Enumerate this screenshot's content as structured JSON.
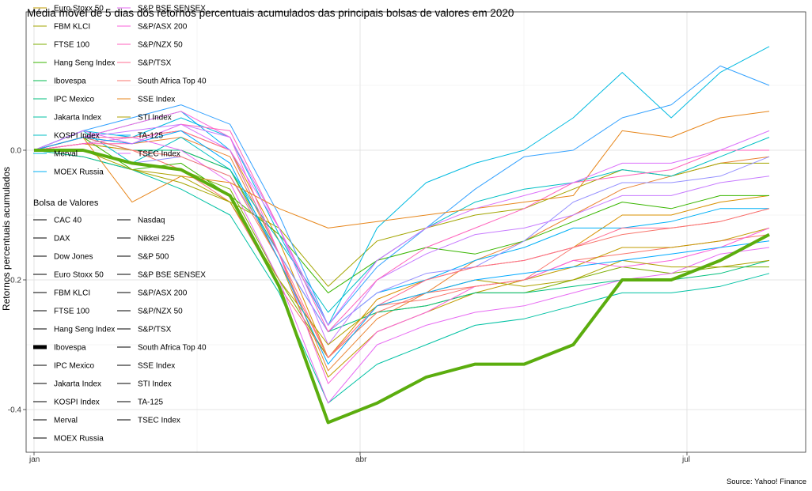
{
  "chart_data": {
    "type": "line",
    "title": "Média móvel de 5 dias dos retornos percentuais acumulados das principais bolsas de valores em 2020",
    "xlabel": "",
    "ylabel": "Retornos percentuais acumulados",
    "caption": "Source: Yahoo! Finance",
    "x_ticks": [
      "jan",
      "abr",
      "jul"
    ],
    "y_ticks": [
      0.0,
      -0.2,
      -0.4
    ],
    "y_tick_labels": [
      "0.0",
      "-0.2",
      "-0.4"
    ],
    "ylim": [
      -0.47,
      0.17
    ],
    "grid": true,
    "highlighted_series": "Ibovespa",
    "legend_title": "Bolsa de Valores",
    "series": [
      {
        "name": "CAC 40",
        "color": "#F8766D",
        "values": [
          0.0,
          0.01,
          0.0,
          -0.03,
          -0.08,
          -0.21,
          -0.32,
          -0.24,
          -0.23,
          -0.21,
          -0.2,
          -0.17,
          -0.16,
          -0.15,
          -0.14,
          -0.13
        ]
      },
      {
        "name": "DAX",
        "color": "#EA8331",
        "values": [
          0.0,
          0.02,
          0.01,
          0.02,
          -0.01,
          -0.16,
          -0.34,
          -0.26,
          -0.22,
          -0.17,
          -0.14,
          -0.1,
          -0.06,
          -0.04,
          -0.02,
          -0.01
        ]
      },
      {
        "name": "Dow Jones",
        "color": "#D89000",
        "values": [
          0.0,
          0.01,
          0.02,
          0.03,
          0.0,
          -0.14,
          -0.32,
          -0.23,
          -0.2,
          -0.18,
          -0.17,
          -0.15,
          -0.1,
          -0.1,
          -0.08,
          -0.07
        ]
      },
      {
        "name": "Euro Stoxx 50",
        "color": "#C09B00",
        "values": [
          0.0,
          0.01,
          0.0,
          0.0,
          -0.03,
          -0.17,
          -0.35,
          -0.28,
          -0.25,
          -0.22,
          -0.2,
          -0.18,
          -0.15,
          -0.15,
          -0.14,
          -0.12
        ]
      },
      {
        "name": "FBM KLCI",
        "color": "#A3A500",
        "values": [
          0.0,
          -0.01,
          -0.03,
          -0.05,
          -0.08,
          -0.12,
          -0.21,
          -0.14,
          -0.12,
          -0.1,
          -0.09,
          -0.06,
          -0.03,
          -0.04,
          -0.02,
          -0.02
        ]
      },
      {
        "name": "FTSE 100",
        "color": "#7CAE00",
        "values": [
          0.0,
          0.0,
          -0.02,
          -0.03,
          -0.06,
          -0.2,
          -0.32,
          -0.25,
          -0.24,
          -0.22,
          -0.22,
          -0.2,
          -0.18,
          -0.19,
          -0.18,
          -0.18
        ]
      },
      {
        "name": "Hang Seng Index",
        "color": "#39B600",
        "values": [
          0.0,
          0.02,
          -0.03,
          -0.02,
          -0.07,
          -0.13,
          -0.22,
          -0.17,
          -0.15,
          -0.16,
          -0.14,
          -0.11,
          -0.08,
          -0.09,
          -0.07,
          -0.07
        ]
      },
      {
        "name": "Ibovespa",
        "color": "#00BB4E",
        "values": [
          0.0,
          0.0,
          -0.02,
          -0.03,
          -0.07,
          -0.21,
          -0.42,
          -0.39,
          -0.35,
          -0.33,
          -0.33,
          -0.3,
          -0.2,
          -0.2,
          -0.17,
          -0.13
        ]
      },
      {
        "name": "IPC Mexico",
        "color": "#00BF7D",
        "values": [
          0.0,
          0.02,
          0.0,
          0.0,
          -0.03,
          -0.16,
          -0.28,
          -0.25,
          -0.24,
          -0.22,
          -0.22,
          -0.21,
          -0.2,
          -0.2,
          -0.19,
          -0.17
        ]
      },
      {
        "name": "Jakarta Index",
        "color": "#00C1A3",
        "values": [
          0.0,
          -0.01,
          -0.03,
          -0.06,
          -0.1,
          -0.22,
          -0.39,
          -0.33,
          -0.3,
          -0.27,
          -0.26,
          -0.24,
          -0.22,
          -0.22,
          -0.21,
          -0.19
        ]
      },
      {
        "name": "KOSPI Index",
        "color": "#00BFC4",
        "values": [
          0.0,
          0.03,
          -0.02,
          0.02,
          -0.03,
          -0.14,
          -0.25,
          -0.17,
          -0.12,
          -0.08,
          -0.06,
          -0.05,
          -0.03,
          -0.04,
          -0.01,
          0.02
        ]
      },
      {
        "name": "Merval",
        "color": "#00BAE0",
        "values": [
          0.0,
          0.03,
          0.02,
          0.05,
          0.02,
          -0.13,
          -0.27,
          -0.12,
          -0.05,
          -0.02,
          0.0,
          0.05,
          0.12,
          0.05,
          0.12,
          0.16
        ]
      },
      {
        "name": "MOEX Russia",
        "color": "#00B0F6",
        "values": [
          0.0,
          0.02,
          0.04,
          0.06,
          0.0,
          -0.16,
          -0.28,
          -0.22,
          -0.2,
          -0.17,
          -0.15,
          -0.12,
          -0.12,
          -0.11,
          -0.09,
          -0.09
        ]
      },
      {
        "name": "Nasdaq",
        "color": "#35A2FF",
        "values": [
          0.0,
          0.03,
          0.05,
          0.07,
          0.04,
          -0.1,
          -0.27,
          -0.18,
          -0.12,
          -0.06,
          -0.01,
          0.0,
          0.05,
          0.07,
          0.13,
          0.1
        ]
      },
      {
        "name": "Nikkei 225",
        "color": "#9590FF",
        "values": [
          0.0,
          0.0,
          -0.02,
          -0.01,
          -0.04,
          -0.16,
          -0.28,
          -0.22,
          -0.19,
          -0.18,
          -0.14,
          -0.08,
          -0.05,
          -0.05,
          -0.04,
          -0.01
        ]
      },
      {
        "name": "S&P 500",
        "color": "#C77CFF",
        "values": [
          0.0,
          0.02,
          0.03,
          0.04,
          0.02,
          -0.12,
          -0.3,
          -0.2,
          -0.16,
          -0.13,
          -0.12,
          -0.1,
          -0.07,
          -0.07,
          -0.05,
          -0.04
        ]
      },
      {
        "name": "S&P BSE SENSEX",
        "color": "#E76BF3",
        "values": [
          0.0,
          0.01,
          0.02,
          0.0,
          -0.05,
          -0.2,
          -0.39,
          -0.3,
          -0.27,
          -0.25,
          -0.24,
          -0.22,
          -0.2,
          -0.19,
          -0.16,
          -0.15
        ]
      },
      {
        "name": "S&P/ASX 200",
        "color": "#FA62DB",
        "values": [
          0.0,
          0.02,
          0.04,
          0.06,
          0.02,
          -0.16,
          -0.36,
          -0.28,
          -0.25,
          -0.21,
          -0.2,
          -0.17,
          -0.18,
          -0.17,
          -0.15,
          -0.12
        ]
      },
      {
        "name": "S&P/NZX 50",
        "color": "#FF62BC",
        "values": [
          0.0,
          0.01,
          0.01,
          0.04,
          0.03,
          -0.12,
          -0.28,
          -0.2,
          -0.15,
          -0.12,
          -0.09,
          -0.05,
          -0.04,
          -0.03,
          0.0,
          0.0
        ]
      },
      {
        "name": "S&P/TSX",
        "color": "#FF6C91",
        "values": [
          0.0,
          0.02,
          0.02,
          0.03,
          0.0,
          -0.16,
          -0.32,
          -0.24,
          -0.2,
          -0.18,
          -0.17,
          -0.15,
          -0.12,
          -0.12,
          -0.11,
          -0.09
        ]
      },
      {
        "name": "South Africa Top 40",
        "color": "#F8766D",
        "values": [
          0.0,
          0.02,
          0.0,
          -0.01,
          -0.04,
          -0.17,
          -0.32,
          -0.25,
          -0.22,
          -0.21,
          -0.2,
          -0.15,
          -0.13,
          -0.12,
          -0.11,
          -0.09
        ]
      },
      {
        "name": "SSE Index",
        "color": "#E7861B",
        "values": [
          0.0,
          0.02,
          -0.08,
          -0.04,
          -0.05,
          -0.09,
          -0.12,
          -0.11,
          -0.1,
          -0.09,
          -0.08,
          -0.07,
          0.03,
          0.02,
          0.05,
          0.06
        ]
      },
      {
        "name": "STI Index",
        "color": "#AEA200",
        "values": [
          0.0,
          0.0,
          -0.03,
          -0.04,
          -0.08,
          -0.2,
          -0.3,
          -0.24,
          -0.22,
          -0.2,
          -0.21,
          -0.2,
          -0.17,
          -0.18,
          -0.18,
          -0.17
        ]
      },
      {
        "name": "TA-125",
        "color": "#00A9FF",
        "values": [
          0.0,
          0.02,
          0.01,
          0.03,
          -0.02,
          -0.17,
          -0.33,
          -0.24,
          -0.22,
          -0.2,
          -0.19,
          -0.18,
          -0.17,
          -0.16,
          -0.15,
          -0.14
        ]
      },
      {
        "name": "TSEC Index",
        "color": "#DB72FB",
        "values": [
          0.0,
          0.03,
          0.01,
          0.04,
          0.0,
          -0.12,
          -0.27,
          -0.17,
          -0.12,
          -0.09,
          -0.07,
          -0.05,
          -0.02,
          -0.02,
          0.0,
          0.03
        ]
      }
    ]
  }
}
